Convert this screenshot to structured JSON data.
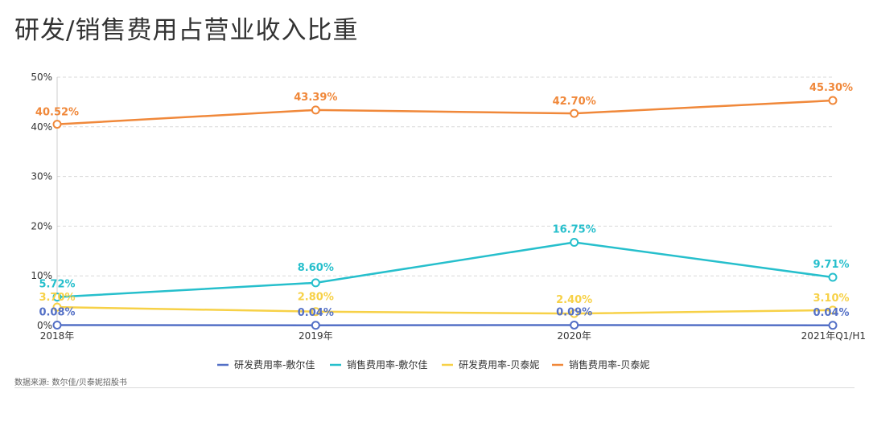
{
  "title": "研发/销售费用占营业收入比重",
  "source": "数据来源: 数尔佳/贝泰妮招股书",
  "chart_data": {
    "type": "line",
    "x": [
      "2018年",
      "2019年",
      "2020年",
      "2021年Q1/H1"
    ],
    "ylim": [
      0,
      50
    ],
    "yticks": [
      0,
      10,
      20,
      30,
      40,
      50
    ],
    "ytick_labels": [
      "0%",
      "10%",
      "20%",
      "30%",
      "40%",
      "50%"
    ],
    "grid": true,
    "legend_position": "bottom",
    "series": [
      {
        "name": "研发费用率-敷尔佳",
        "color": "#5470c6",
        "values": [
          0.08,
          0.04,
          0.09,
          0.04
        ],
        "labels": [
          "0.08%",
          "0.04%",
          "0.09%",
          "0.04%"
        ]
      },
      {
        "name": "销售费用率-敷尔佳",
        "color": "#26bfcc",
        "values": [
          5.72,
          8.6,
          16.75,
          9.71
        ],
        "labels": [
          "5.72%",
          "8.60%",
          "16.75%",
          "9.71%"
        ]
      },
      {
        "name": "研发费用率-贝泰妮",
        "color": "#f7d147",
        "values": [
          3.7,
          2.8,
          2.4,
          3.1
        ],
        "labels": [
          "3.70%",
          "2.80%",
          "2.40%",
          "3.10%"
        ]
      },
      {
        "name": "销售费用率-贝泰妮",
        "color": "#f0883a",
        "values": [
          40.52,
          43.39,
          42.7,
          45.3
        ],
        "labels": [
          "40.52%",
          "43.39%",
          "42.70%",
          "45.30%"
        ]
      }
    ]
  }
}
